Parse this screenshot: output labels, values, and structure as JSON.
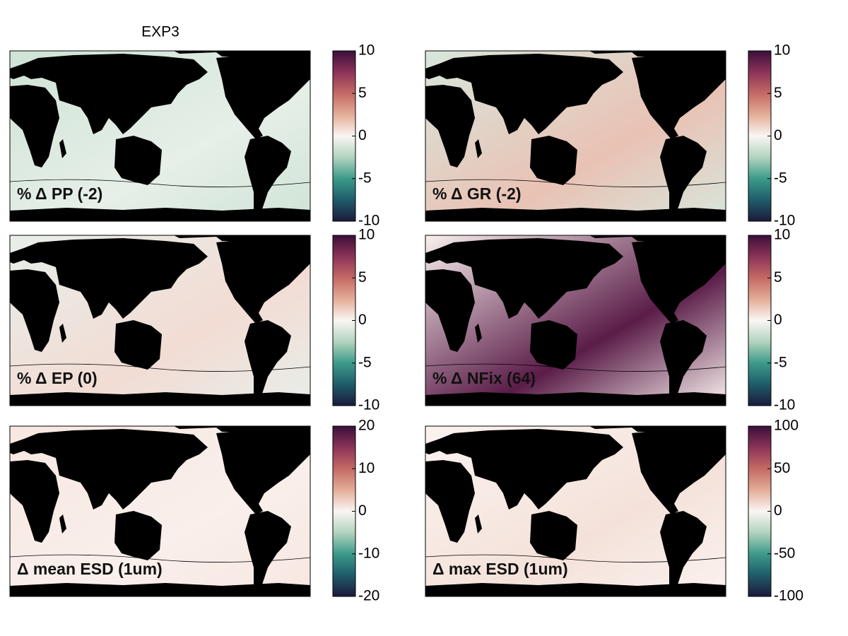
{
  "chart_data": [
    {
      "type": "map",
      "title": "EXP3",
      "label": "% Δ PP (-2)",
      "clim": [
        -10,
        10
      ],
      "cticks": [
        -10,
        -5,
        0,
        5,
        10
      ]
    },
    {
      "type": "map",
      "label": "% Δ GR (-2)",
      "clim": [
        -10,
        10
      ],
      "cticks": [
        -10,
        -5,
        0,
        5,
        10
      ]
    },
    {
      "type": "map",
      "label": "% Δ EP (0)",
      "clim": [
        -10,
        10
      ],
      "cticks": [
        -10,
        -5,
        0,
        5,
        10
      ]
    },
    {
      "type": "map",
      "label": "% Δ NFix (64)",
      "clim": [
        -10,
        10
      ],
      "cticks": [
        -10,
        -5,
        0,
        5,
        10
      ]
    },
    {
      "type": "map",
      "label": "Δ mean ESD (1um)",
      "clim": [
        -20,
        20
      ],
      "cticks": [
        -20,
        -10,
        0,
        10,
        20
      ]
    },
    {
      "type": "map",
      "label": "Δ max ESD (1um)",
      "clim": [
        -100,
        100
      ],
      "cticks": [
        -100,
        -50,
        0,
        50,
        100
      ]
    }
  ],
  "colormap": [
    "#1c1a3c",
    "#1f5c6a",
    "#3d9a8a",
    "#b2d4be",
    "#faf6f3",
    "#e4ad98",
    "#c46a64",
    "#8c3358",
    "#3b0f3a"
  ]
}
